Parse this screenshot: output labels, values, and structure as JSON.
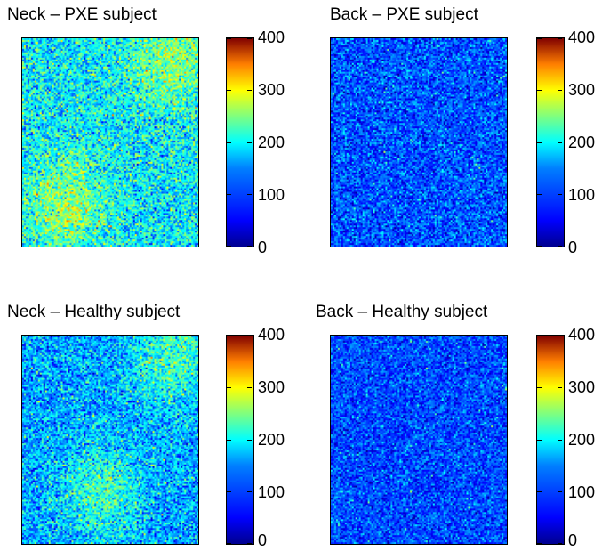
{
  "chart_data": [
    {
      "type": "heatmap",
      "title": "Neck – PXE subject",
      "colorbar": {
        "ticks": [
          "0",
          "100",
          "200",
          "300",
          "400"
        ],
        "clim": [
          0,
          400
        ],
        "colormap": "jet"
      },
      "field": {
        "base": 125,
        "spread": 60,
        "hot_regions": [
          "lower-left",
          "upper-right"
        ]
      }
    },
    {
      "type": "heatmap",
      "title": "Back – PXE subject",
      "colorbar": {
        "ticks": [
          "0",
          "100",
          "200",
          "300",
          "400"
        ],
        "clim": [
          0,
          400
        ],
        "colormap": "jet"
      },
      "field": {
        "base": 55,
        "spread": 45,
        "hot_regions": []
      }
    },
    {
      "type": "heatmap",
      "title": "Neck – Healthy subject",
      "colorbar": {
        "ticks": [
          "0",
          "100",
          "200",
          "300",
          "400"
        ],
        "clim": [
          0,
          400
        ],
        "colormap": "jet"
      },
      "field": {
        "base": 90,
        "spread": 55,
        "hot_regions": [
          "upper-right",
          "lower-center"
        ]
      }
    },
    {
      "type": "heatmap",
      "title": "Back – Healthy subject",
      "colorbar": {
        "ticks": [
          "0",
          "100",
          "200",
          "300",
          "400"
        ],
        "clim": [
          0,
          400
        ],
        "colormap": "jet"
      },
      "field": {
        "base": 50,
        "spread": 40,
        "hot_regions": []
      }
    }
  ]
}
